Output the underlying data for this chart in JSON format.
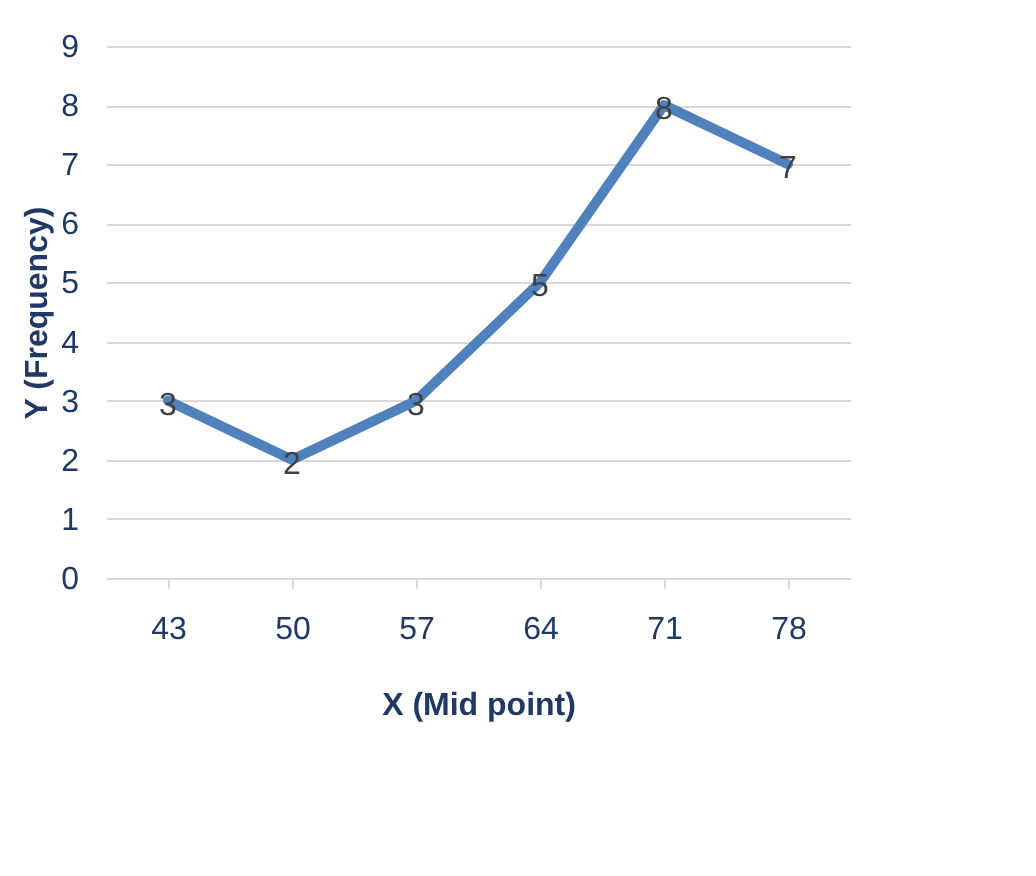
{
  "chart_data": {
    "type": "line",
    "xlabel": "X (Mid point)",
    "ylabel": "Y (Frequency)",
    "categories": [
      "43",
      "50",
      "57",
      "64",
      "71",
      "78"
    ],
    "series": [
      {
        "color": "#4f81bd",
        "values": [
          3,
          2,
          3,
          5,
          8,
          7
        ]
      }
    ],
    "ylim": [
      0,
      9
    ],
    "yticks": [
      0,
      1,
      2,
      3,
      4,
      5,
      6,
      7,
      8,
      9
    ],
    "grid": "y",
    "data_labels": true,
    "marker": "none",
    "line_style": "solid"
  }
}
